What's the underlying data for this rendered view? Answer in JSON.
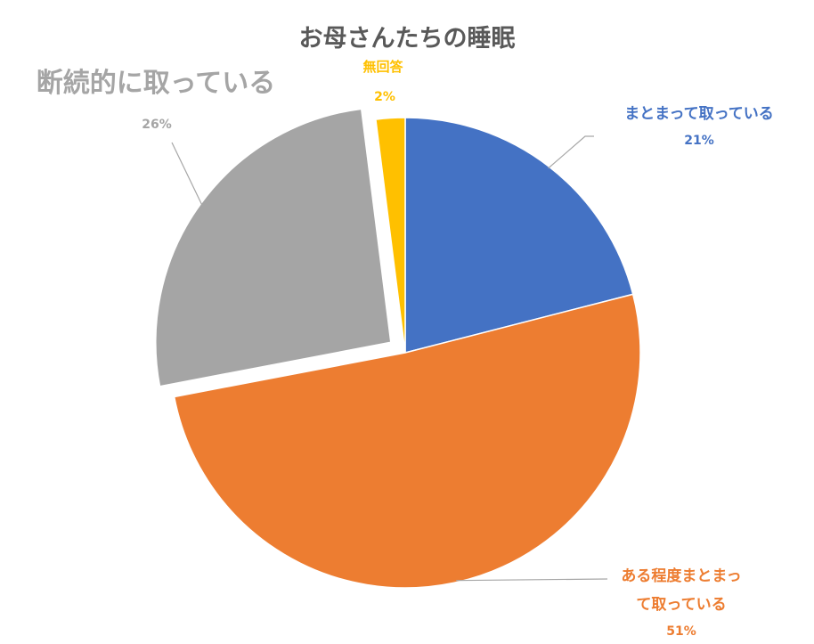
{
  "chart_data": {
    "type": "pie",
    "title": "お母さんたちの睡眠",
    "categories": [
      "まとまって取っている",
      "ある程度まとまって取っている",
      "断続的に取っている",
      "無回答"
    ],
    "values": [
      21,
      51,
      26,
      2
    ],
    "value_labels": [
      "21%",
      "51%",
      "26%",
      "2%"
    ],
    "colors": [
      "#4472C4",
      "#ED7D31",
      "#A5A5A5",
      "#FFC000"
    ],
    "exploded": [
      false,
      false,
      true,
      false
    ],
    "legend": "none"
  }
}
